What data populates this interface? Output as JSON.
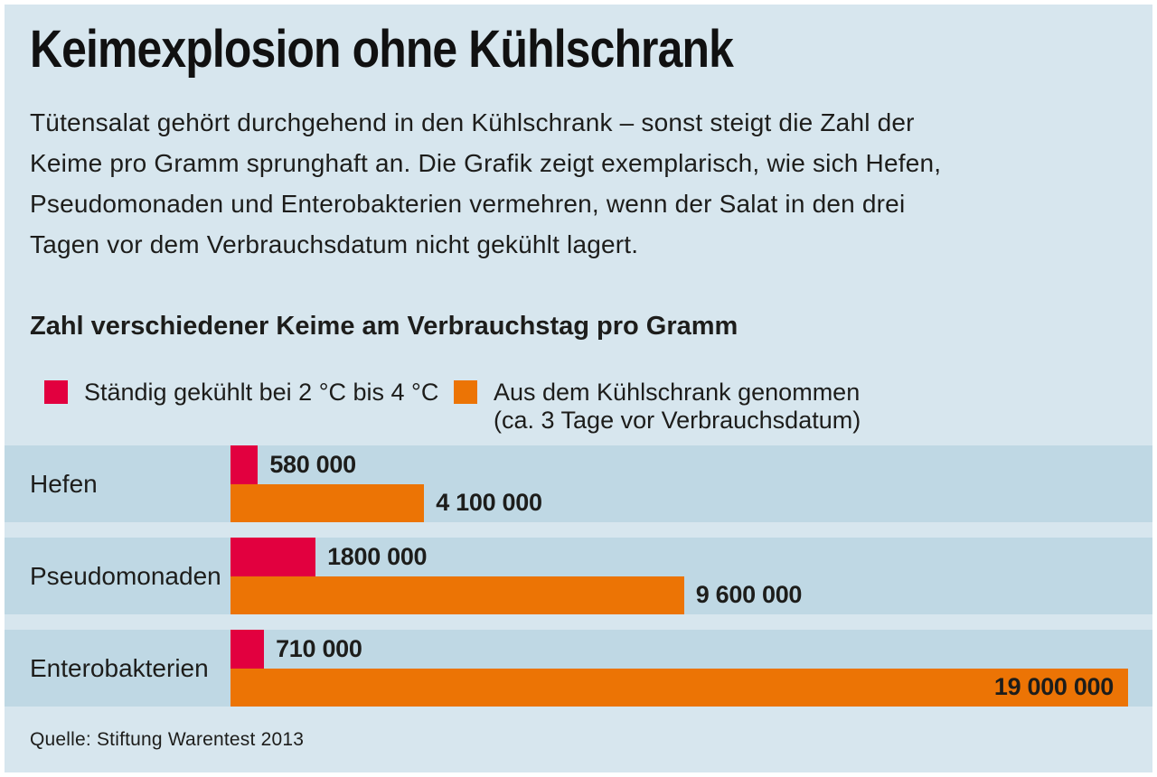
{
  "page": {
    "background": "#ffffff",
    "panel_background": "#d7e6ee",
    "row_band_background": "#bfd8e4",
    "text_color": "#1d1d1b"
  },
  "header": {
    "title": "Keimexplosion ohne Kühlschrank"
  },
  "intro": {
    "lines": [
      "Tütensalat gehört durchgehend in den Kühlschrank – sonst steigt die Zahl der",
      "Keime pro Gramm sprunghaft an. Die Grafik zeigt exemplarisch, wie sich Hefen,",
      "Pseudomonaden und Enterobakterien vermehren, wenn der Salat in den drei",
      "Tagen vor dem Verbrauchsdatum nicht gekühlt lagert."
    ]
  },
  "chart": {
    "heading": "Zahl verschiedener Keime am Verbrauchstag pro Gramm",
    "max_value": 19000000,
    "legend": [
      {
        "label": "Ständig gekühlt bei 2 °C bis 4 °C",
        "label_line2": "",
        "color": "#e2003f"
      },
      {
        "label": "Aus dem Kühlschrank genommen",
        "label_line2": "(ca. 3 Tage vor Verbrauchsdatum)",
        "color": "#ec7405"
      }
    ],
    "rows": [
      {
        "category": "Hefen",
        "cooled": {
          "value": 580000,
          "label": "580 000"
        },
        "uncooled": {
          "value": 4100000,
          "label": "4 100 000",
          "label_inside": false
        }
      },
      {
        "category": "Pseudomonaden",
        "cooled": {
          "value": 1800000,
          "label": "1800 000"
        },
        "uncooled": {
          "value": 9600000,
          "label": "9 600 000",
          "label_inside": false
        }
      },
      {
        "category": "Enterobakterien",
        "cooled": {
          "value": 710000,
          "label": "710 000"
        },
        "uncooled": {
          "value": 19000000,
          "label": "19 000 000",
          "label_inside": true
        }
      }
    ]
  },
  "footer": {
    "source": "Quelle: Stiftung Warentest 2013"
  },
  "chart_data": {
    "type": "bar",
    "orientation": "horizontal",
    "title": "Zahl verschiedener Keime am Verbrauchstag pro Gramm",
    "categories": [
      "Hefen",
      "Pseudomonaden",
      "Enterobakterien"
    ],
    "series": [
      {
        "name": "Ständig gekühlt bei 2 °C bis 4 °C",
        "color": "#e2003f",
        "values": [
          580000,
          1800000,
          710000
        ],
        "value_labels": [
          "580 000",
          "1800 000",
          "710 000"
        ]
      },
      {
        "name": "Aus dem Kühlschrank genommen (ca. 3 Tage vor Verbrauchsdatum)",
        "color": "#ec7405",
        "values": [
          4100000,
          9600000,
          19000000
        ],
        "value_labels": [
          "4 100 000",
          "9 600 000",
          "19 000 000"
        ]
      }
    ],
    "xlim": [
      0,
      19000000
    ],
    "grid": false,
    "legend_position": "top",
    "value_labels_shown": true,
    "source": "Quelle: Stiftung Warentest 2013"
  }
}
